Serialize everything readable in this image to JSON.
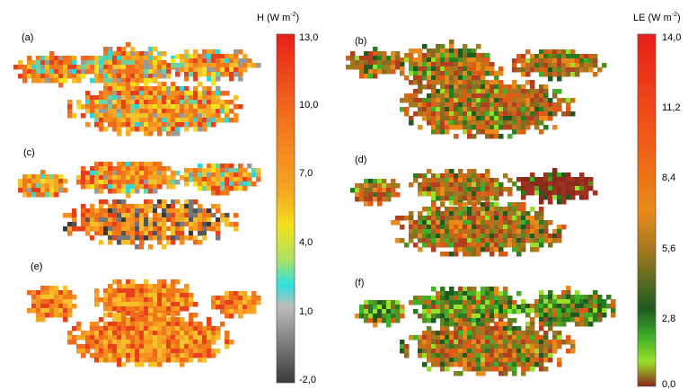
{
  "panels": [
    "(a)",
    "(b)",
    "(c)",
    "(d)",
    "(e)",
    "(f)"
  ],
  "colorbar_h": {
    "label": "H (W m",
    "sup": "-2",
    "close": ")",
    "ticks": [
      "13,0",
      "10,0",
      "7,0",
      "4,0",
      "1,0",
      "-2,0"
    ]
  },
  "colorbar_le": {
    "label": "LE (W m",
    "sup": "-2",
    "close": ")",
    "ticks": [
      "14,0",
      "11,2",
      "8,4",
      "5,6",
      "2,8",
      "0,0"
    ]
  }
}
